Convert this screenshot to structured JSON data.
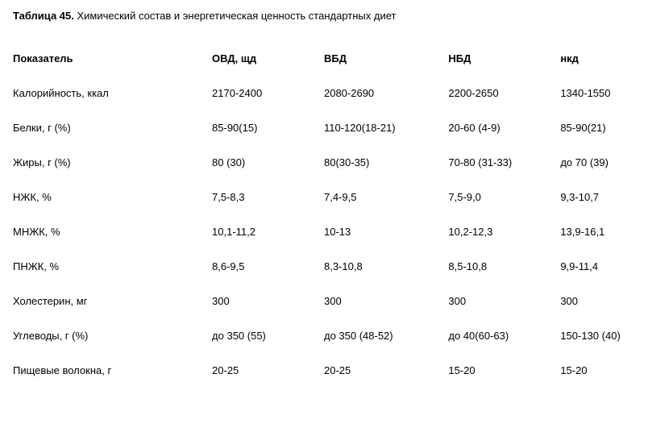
{
  "title_bold": "Таблица 45.",
  "title_rest": " Химический состав и энергетическая ценность стандартных диет",
  "columns": [
    "Показатель",
    "ОВД, щд",
    "ВБД",
    "НБД",
    "нкд"
  ],
  "rows": [
    [
      "Калорийность, ккал",
      "2170-2400",
      "2080-2690",
      "2200-2650",
      "1340-1550"
    ],
    [
      "Белки, г (%)",
      "85-90(15)",
      "110-120(18-21)",
      "20-60 (4-9)",
      "85-90(21)"
    ],
    [
      "Жиры, г (%)",
      "80 (30)",
      "80(30-35)",
      "70-80 (31-33)",
      "до 70 (39)"
    ],
    [
      "НЖК, %",
      "7,5-8,3",
      "7,4-9,5",
      "7,5-9,0",
      "9,3-10,7"
    ],
    [
      "МНЖК, %",
      "10,1-11,2",
      "10-13",
      "10,2-12,3",
      "13,9-16,1"
    ],
    [
      "ПНЖК, %",
      "8,6-9,5",
      "8,3-10,8",
      "8,5-10,8",
      "9,9-11,4"
    ],
    [
      "Холестерин, мг",
      "300",
      "300",
      "300",
      "300"
    ],
    [
      "Углеводы, г (%)",
      "до 350 (55)",
      "до 350 (48-52)",
      "до 40(60-63)",
      "150-130 (40)"
    ],
    [
      "Пищевые волокна, г",
      "20-25",
      "20-25",
      "15-20",
      "15-20"
    ]
  ]
}
